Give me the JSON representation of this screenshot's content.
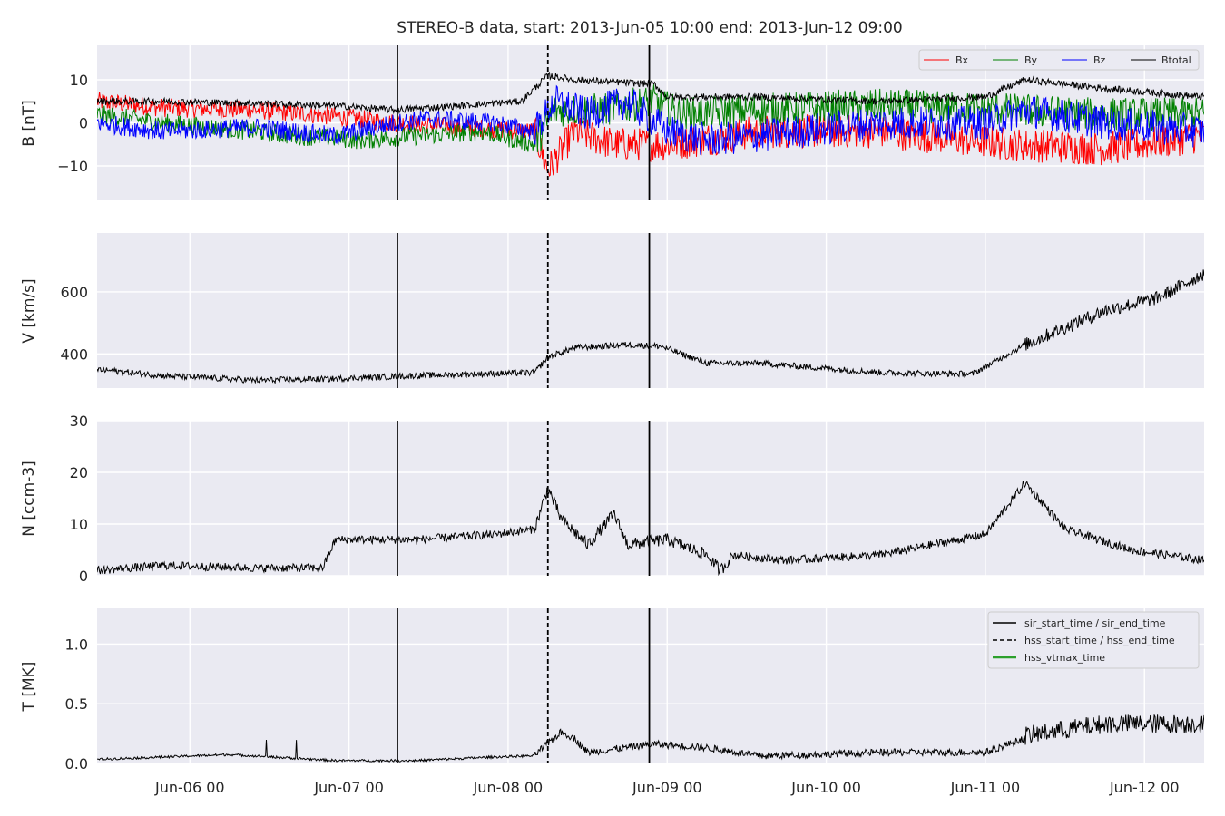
{
  "chart_data": {
    "type": "line",
    "title": "STEREO-B data, start: 2013-Jun-05 10:00  end: 2013-Jun-12 09:00",
    "x_tick_labels": [
      "Jun-06 00",
      "Jun-07 00",
      "Jun-08 00",
      "Jun-09 00",
      "Jun-10 00",
      "Jun-11 00",
      "Jun-12 00"
    ],
    "x_range_hours": [
      0,
      167
    ],
    "grid": true,
    "events": {
      "sir_start_hour": 45.3,
      "hss_start_hour": 68.0,
      "sir_end_hour": 83.3
    },
    "panels": [
      {
        "ylabel": "B [nT]",
        "ylim": [
          -18,
          18
        ],
        "yticks": [
          -10,
          0,
          10
        ],
        "ytick_labels": [
          "−10",
          "0",
          "10"
        ],
        "legend": [
          "Bx",
          "By",
          "Bz",
          "Btotal"
        ],
        "legend_position": "top-right",
        "series": [
          {
            "name": "Bx",
            "color": "#ff0000",
            "knots": [
              [
                0,
                5
              ],
              [
                10,
                3.5
              ],
              [
                24,
                3
              ],
              [
                36,
                1.5
              ],
              [
                45,
                0
              ],
              [
                55,
                -1
              ],
              [
                66,
                -2
              ],
              [
                68,
                -11
              ],
              [
                72,
                -2
              ],
              [
                78,
                -5
              ],
              [
                86,
                -5
              ],
              [
                91,
                -4
              ],
              [
                100,
                -2
              ],
              [
                118,
                -2
              ],
              [
                138,
                -5
              ],
              [
                152,
                -6
              ],
              [
                167,
                -3
              ]
            ]
          },
          {
            "name": "By",
            "color": "#008000",
            "knots": [
              [
                0,
                2
              ],
              [
                10,
                0
              ],
              [
                24,
                -2
              ],
              [
                30,
                -3
              ],
              [
                40,
                -4
              ],
              [
                48,
                -3
              ],
              [
                58,
                -2
              ],
              [
                66,
                -5
              ],
              [
                69,
                3
              ],
              [
                76,
                3
              ],
              [
                84,
                5
              ],
              [
                88,
                2
              ],
              [
                100,
                3
              ],
              [
                118,
                4
              ],
              [
                138,
                3
              ],
              [
                150,
                2
              ],
              [
                167,
                2
              ]
            ]
          },
          {
            "name": "Bz",
            "color": "#0000ff",
            "knots": [
              [
                0,
                0
              ],
              [
                10,
                -2
              ],
              [
                24,
                -1
              ],
              [
                36,
                -3
              ],
              [
                45,
                0
              ],
              [
                50,
                1
              ],
              [
                60,
                0
              ],
              [
                66,
                -2
              ],
              [
                69,
                5
              ],
              [
                74,
                2
              ],
              [
                80,
                5
              ],
              [
                86,
                -2
              ],
              [
                92,
                -4
              ],
              [
                100,
                -3
              ],
              [
                118,
                0
              ],
              [
                134,
                0
              ],
              [
                140,
                3
              ],
              [
                152,
                0
              ],
              [
                167,
                -2
              ]
            ]
          },
          {
            "name": "Btotal",
            "color": "#000000",
            "knots": [
              [
                0,
                5
              ],
              [
                10,
                5
              ],
              [
                24,
                4.5
              ],
              [
                36,
                4
              ],
              [
                45,
                3
              ],
              [
                55,
                4
              ],
              [
                64,
                5
              ],
              [
                68,
                11
              ],
              [
                72,
                10
              ],
              [
                84,
                9
              ],
              [
                86,
                6
              ],
              [
                100,
                6
              ],
              [
                118,
                5
              ],
              [
                134,
                6
              ],
              [
                140,
                10
              ],
              [
                152,
                8
              ],
              [
                167,
                6
              ]
            ]
          }
        ]
      },
      {
        "ylabel": "V [km/s]",
        "ylim": [
          290,
          790
        ],
        "yticks": [
          400,
          600
        ],
        "ytick_labels": [
          "400",
          "600"
        ],
        "series": [
          {
            "name": "V",
            "color": "#000000",
            "knots": [
              [
                0,
                350
              ],
              [
                10,
                330
              ],
              [
                24,
                315
              ],
              [
                36,
                320
              ],
              [
                48,
                330
              ],
              [
                66,
                340
              ],
              [
                68,
                390
              ],
              [
                72,
                420
              ],
              [
                80,
                430
              ],
              [
                85,
                425
              ],
              [
                92,
                370
              ],
              [
                100,
                370
              ],
              [
                118,
                340
              ],
              [
                132,
                335
              ],
              [
                140,
                430
              ],
              [
                152,
                540
              ],
              [
                160,
                580
              ],
              [
                167,
                660
              ]
            ]
          }
        ]
      },
      {
        "ylabel": "N [ccm-3]",
        "ylim": [
          0,
          30
        ],
        "yticks": [
          0,
          10,
          20,
          30
        ],
        "ytick_labels": [
          "0",
          "10",
          "20",
          "30"
        ],
        "series": [
          {
            "name": "N",
            "color": "#000000",
            "knots": [
              [
                0,
                1
              ],
              [
                10,
                2
              ],
              [
                24,
                1.5
              ],
              [
                34,
                1.5
              ],
              [
                36,
                7
              ],
              [
                45,
                7
              ],
              [
                48,
                7
              ],
              [
                60,
                8
              ],
              [
                66,
                9
              ],
              [
                68,
                17
              ],
              [
                70,
                11
              ],
              [
                74,
                6
              ],
              [
                78,
                12
              ],
              [
                80,
                6
              ],
              [
                86,
                7
              ],
              [
                92,
                4
              ],
              [
                94,
                1
              ],
              [
                96,
                4
              ],
              [
                104,
                3
              ],
              [
                118,
                4
              ],
              [
                134,
                8
              ],
              [
                140,
                18
              ],
              [
                146,
                9
              ],
              [
                156,
                5
              ],
              [
                167,
                3
              ]
            ]
          }
        ]
      },
      {
        "ylabel": "T [MK]",
        "ylim": [
          0,
          1.3
        ],
        "yticks": [
          0,
          0.5,
          1.0
        ],
        "ytick_labels": [
          "0.0",
          "0.5",
          "1.0"
        ],
        "legend": [
          "sir_start_time / sir_end_time",
          "hss_start_time / hss_end_time",
          "hss_vtmax_time"
        ],
        "legend_position": "top-right",
        "series": [
          {
            "name": "T",
            "color": "#000000",
            "knots": [
              [
                0,
                0.03
              ],
              [
                10,
                0.05
              ],
              [
                20,
                0.07
              ],
              [
                36,
                0.02
              ],
              [
                48,
                0.02
              ],
              [
                60,
                0.05
              ],
              [
                66,
                0.06
              ],
              [
                70,
                0.25
              ],
              [
                72,
                0.2
              ],
              [
                74,
                0.08
              ],
              [
                84,
                0.15
              ],
              [
                92,
                0.12
              ],
              [
                100,
                0.05
              ],
              [
                118,
                0.08
              ],
              [
                134,
                0.08
              ],
              [
                140,
                0.2
              ],
              [
                152,
                0.3
              ],
              [
                167,
                0.3
              ]
            ]
          }
        ]
      }
    ]
  },
  "legend_b": {
    "bx": "Bx",
    "by": "By",
    "bz": "Bz",
    "bt": "Btotal"
  },
  "legend_t": {
    "sir": "sir_start_time / sir_end_time",
    "hss": "hss_start_time / hss_end_time",
    "vtmax": "hss_vtmax_time"
  },
  "colors": {
    "background": "#eaeaf2",
    "grid": "#ffffff",
    "bx": "#ff0000",
    "by": "#008000",
    "bz": "#0000ff",
    "btotal": "#000000",
    "vtmax": "#2ca02c"
  }
}
